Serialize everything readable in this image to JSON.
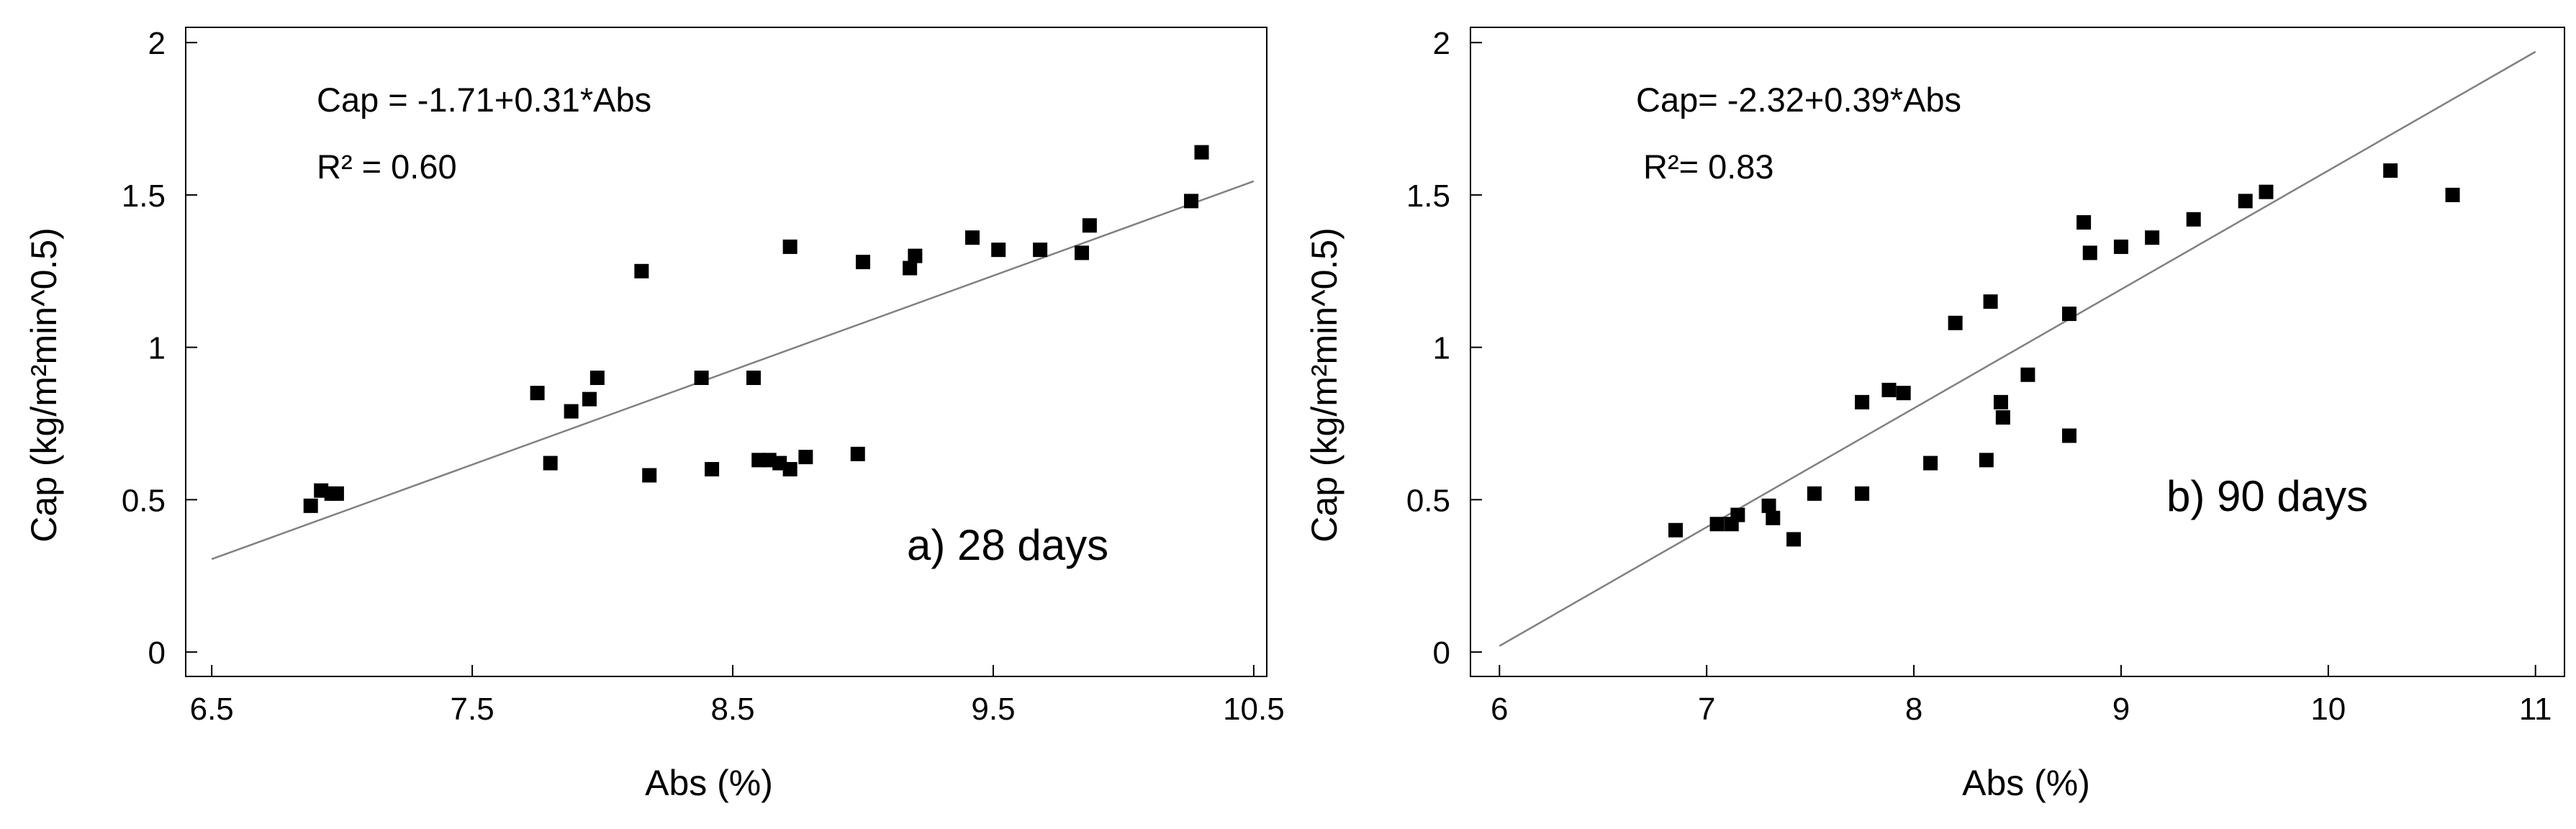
{
  "figure": {
    "background": "#ffffff",
    "marker_color": "#000000",
    "line_color": "#808080"
  },
  "chart_data": [
    {
      "type": "scatter",
      "panel_label": "a) 28 days",
      "equation": "Cap = -1.71+0.31*Abs",
      "r2": "R² = 0.60",
      "xlabel": "Abs (%)",
      "ylabel": "Cap (kg/m²min^0.5)",
      "xlim": [
        6.4,
        10.55
      ],
      "ylim": [
        -0.08,
        2.05
      ],
      "xticks": [
        6.5,
        7.5,
        8.5,
        9.5,
        10.5
      ],
      "xtick_labels": [
        "6.5",
        "7.5",
        "8.5",
        "9.5",
        "10.5"
      ],
      "yticks": [
        0,
        0.5,
        1,
        1.5,
        2
      ],
      "ytick_labels": [
        "0",
        "0.5",
        "1",
        "1.5",
        "2"
      ],
      "fit": {
        "intercept": -1.71,
        "slope": 0.31,
        "x_range": [
          6.5,
          10.5
        ]
      },
      "points": {
        "x": [
          6.88,
          6.92,
          6.96,
          6.98,
          7.75,
          7.8,
          7.88,
          7.95,
          7.98,
          8.15,
          8.18,
          8.38,
          8.42,
          8.58,
          8.6,
          8.64,
          8.68,
          8.72,
          8.72,
          8.78,
          8.98,
          9.0,
          9.18,
          9.2,
          9.42,
          9.52,
          9.68,
          9.84,
          9.87,
          10.26,
          10.3
        ],
        "y": [
          0.48,
          0.53,
          0.52,
          0.52,
          0.85,
          0.62,
          0.79,
          0.83,
          0.9,
          1.25,
          0.58,
          0.9,
          0.6,
          0.9,
          0.63,
          0.63,
          0.62,
          0.6,
          1.33,
          0.64,
          0.65,
          1.28,
          1.26,
          1.3,
          1.36,
          1.32,
          1.32,
          1.31,
          1.4,
          1.48,
          1.64
        ]
      }
    },
    {
      "type": "scatter",
      "panel_label": "b) 90 days",
      "equation": "Cap= -2.32+0.39*Abs",
      "r2": "R²= 0.83",
      "xlabel": "Abs (%)",
      "ylabel": "Cap (kg/m²min^0.5)",
      "xlim": [
        5.86,
        11.14
      ],
      "ylim": [
        -0.08,
        2.05
      ],
      "xticks": [
        6,
        7,
        8,
        9,
        10,
        11
      ],
      "xtick_labels": [
        "6",
        "7",
        "8",
        "9",
        "10",
        "11"
      ],
      "yticks": [
        0,
        0.5,
        1,
        1.5,
        2
      ],
      "ytick_labels": [
        "0",
        "0.5",
        "1",
        "1.5",
        "2"
      ],
      "fit": {
        "intercept": -2.32,
        "slope": 0.39,
        "x_range": [
          6.0,
          11.0
        ]
      },
      "points": {
        "x": [
          6.85,
          7.05,
          7.12,
          7.15,
          7.3,
          7.32,
          7.42,
          7.52,
          7.75,
          7.75,
          7.88,
          7.95,
          8.08,
          8.2,
          8.35,
          8.37,
          8.42,
          8.43,
          8.55,
          8.75,
          8.75,
          8.82,
          8.85,
          9.0,
          9.15,
          9.35,
          9.6,
          9.7,
          10.3,
          10.6
        ],
        "y": [
          0.4,
          0.42,
          0.42,
          0.45,
          0.48,
          0.44,
          0.37,
          0.52,
          0.52,
          0.82,
          0.86,
          0.85,
          0.62,
          1.08,
          0.63,
          1.15,
          0.82,
          0.77,
          0.91,
          1.11,
          0.71,
          1.41,
          1.31,
          1.33,
          1.36,
          1.42,
          1.48,
          1.51,
          1.58,
          1.5
        ]
      }
    }
  ]
}
